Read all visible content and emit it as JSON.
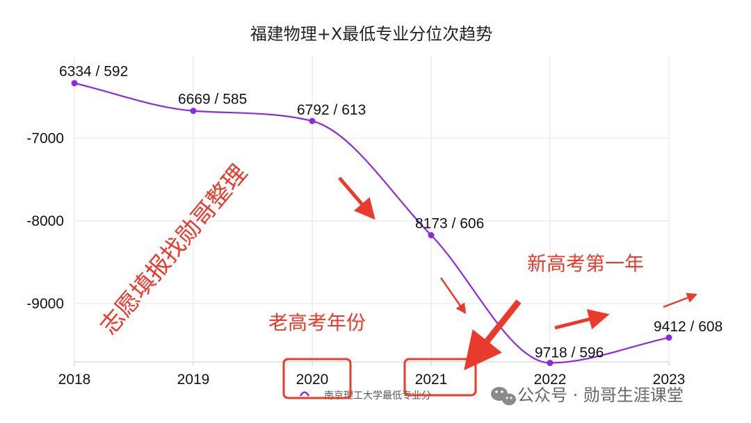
{
  "chart_data": {
    "type": "line",
    "title": "福建物理+X最低专业分位次趋势",
    "categories": [
      "2018",
      "2019",
      "2020",
      "2021",
      "2022",
      "2023"
    ],
    "series": [
      {
        "name": "南京理工大学最低专业分",
        "color": "#8a2be2",
        "values": [
          -6334,
          -6669,
          -6792,
          -8173,
          -9718,
          -9412
        ],
        "labels": [
          "6334 / 592",
          "6669 / 585",
          "6792 / 613",
          "8173 / 606",
          "9718 / 596",
          "9412 / 608"
        ]
      }
    ],
    "y_ticks": [
      -7000,
      -8000,
      -9000
    ],
    "y_tick_labels": [
      "-7000",
      "-8000",
      "-9000"
    ],
    "ylim": [
      -9700,
      -6000
    ],
    "grid": true,
    "legend": "bottom-center"
  },
  "annotations": {
    "diagonal": "志愿填报找勋哥整理",
    "old_exam": "老高考年份",
    "new_exam": "新高考第一年",
    "highlight_color": "#ea3a2c"
  },
  "watermark": {
    "icon": "wechat-icon",
    "text": "公众号 · 勋哥生涯课堂"
  }
}
